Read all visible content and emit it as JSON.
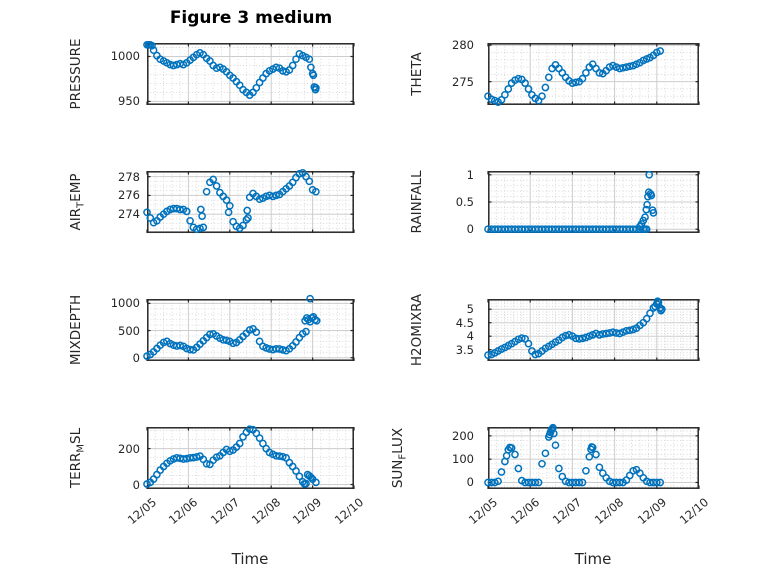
{
  "colors": {
    "marker": "#0072BD",
    "axis": "#262626",
    "grid_major": "#cdcdcd",
    "grid_minor": "#d4d4d4",
    "text": "#262626",
    "title": "#000000"
  },
  "chart_data": {
    "type": "scatter",
    "title": "Figure 3 medium",
    "xlabel": "Time",
    "xlim": [
      0,
      5
    ],
    "x_tick_positions": [
      0,
      1,
      2,
      3,
      4,
      5
    ],
    "x_tick_labels": [
      "12/05",
      "12/06",
      "12/07",
      "12/08",
      "12/09",
      "12/10"
    ],
    "x_minor_step": 0.2,
    "marker_style": "open-circle",
    "t_days": [
      0,
      0.08,
      0.16,
      0.24,
      0.32,
      0.4,
      0.48,
      0.56,
      0.64,
      0.72,
      0.8,
      0.88,
      0.96,
      1.04,
      1.12,
      1.2,
      1.28,
      1.36,
      1.44,
      1.52,
      1.6,
      1.68,
      1.76,
      1.84,
      1.92,
      2,
      2.08,
      2.16,
      2.24,
      2.32,
      2.4,
      2.48,
      2.56,
      2.64,
      2.72,
      2.8,
      2.88,
      2.96,
      3.04,
      3.12,
      3.2,
      3.28,
      3.36,
      3.44,
      3.52,
      3.6,
      3.68,
      3.76,
      3.84,
      3.92,
      4,
      4.08
    ],
    "charts": [
      {
        "name": "PRESSURE",
        "row": 0,
        "col": 0,
        "label_parts": [
          {
            "t": "PRESSURE"
          }
        ],
        "ylim": [
          946,
          1015
        ],
        "yticks": [
          950,
          1000
        ],
        "ytick_labels": [
          "950",
          "1000"
        ],
        "y_minor_step": 10,
        "y": [
          1013,
          1013,
          1007,
          1001,
          997,
          995,
          993,
          991,
          990,
          991,
          992,
          991,
          993,
          996,
          999,
          1002,
          1004,
          1002,
          998,
          995,
          990,
          987,
          988,
          986,
          983,
          979,
          976,
          972,
          968,
          963,
          960,
          957,
          960,
          965,
          971,
          976,
          981,
          984,
          986,
          988,
          987,
          984,
          983,
          985,
          990,
          997,
          1003,
          1001,
          999,
          997,
          981,
          965
        ],
        "extra_points": [
          [
            0.04,
            1013
          ],
          [
            0.12,
            1012
          ],
          [
            3.96,
            988
          ],
          [
            4.02,
            979
          ],
          [
            4.04,
            966
          ],
          [
            4.07,
            963
          ]
        ]
      },
      {
        "name": "THETA",
        "row": 0,
        "col": 1,
        "label_parts": [
          {
            "t": "THETA"
          }
        ],
        "ylim": [
          271.8,
          280.3
        ],
        "yticks": [
          275,
          280
        ],
        "ytick_labels": [
          "275",
          "280"
        ],
        "y_minor_step": 1,
        "y": [
          273,
          272.6,
          272.4,
          272.2,
          272.5,
          273.2,
          274,
          274.8,
          275.2,
          275.4,
          275.3,
          274.8,
          274,
          273.2,
          272.7,
          272.4,
          273,
          274.2,
          275.6,
          276.8,
          277.3,
          276.8,
          276.2,
          275.6,
          275.1,
          274.8,
          274.9,
          275,
          275.4,
          276.2,
          277,
          277.4,
          276.8,
          276.2,
          276.1,
          276.5,
          277,
          277.2,
          277,
          276.8,
          276.9,
          277,
          277.1,
          277.2,
          277.4,
          277.6,
          277.9,
          278.1,
          278.3,
          278.6,
          279,
          279.2
        ],
        "extra_points": []
      },
      {
        "name": "AIR_TEMP",
        "row": 1,
        "col": 0,
        "label_parts": [
          {
            "t": "AIR"
          },
          {
            "s": "T"
          },
          {
            "t": "EMP"
          }
        ],
        "ylim": [
          272,
          278.6
        ],
        "yticks": [
          274,
          276,
          278
        ],
        "ytick_labels": [
          "274",
          "276",
          "278"
        ],
        "y_minor_step": 0.5,
        "y": [
          274.2,
          273.6,
          273.1,
          273.3,
          273.7,
          274,
          274.3,
          274.5,
          274.6,
          274.6,
          274.5,
          274.5,
          274.3,
          273.3,
          272.6,
          272.4,
          272.5,
          272.6,
          276.4,
          277.4,
          277.7,
          277,
          276.3,
          275.9,
          275.5,
          274.9,
          273.2,
          272.7,
          272.5,
          272.8,
          273.4,
          275.8,
          276.2,
          275.9,
          275.6,
          275.7,
          275.9,
          276,
          275.9,
          276,
          276.1,
          276.4,
          276.7,
          277,
          277.4,
          277.9,
          278.3,
          278.4,
          278,
          277.5,
          276.6,
          276.4
        ],
        "extra_points": [
          [
            1.3,
            274.5
          ],
          [
            1.33,
            273.8
          ],
          [
            1.97,
            274.2
          ],
          [
            2.42,
            274.4
          ],
          [
            2.44,
            273.6
          ]
        ]
      },
      {
        "name": "RAINFALL",
        "row": 1,
        "col": 1,
        "label_parts": [
          {
            "t": "RAINFALL"
          }
        ],
        "ylim": [
          -0.07,
          1.07
        ],
        "yticks": [
          0,
          0.5,
          1
        ],
        "ytick_labels": [
          "0",
          "0.5",
          "1"
        ],
        "y_minor_step": 0.1,
        "y": [
          0,
          0,
          0,
          0,
          0,
          0,
          0,
          0,
          0,
          0,
          0,
          0,
          0,
          0,
          0,
          0,
          0,
          0,
          0,
          0,
          0,
          0,
          0,
          0,
          0,
          0,
          0,
          0,
          0,
          0,
          0,
          0,
          0,
          0,
          0,
          0,
          0,
          0,
          0,
          0,
          0,
          0,
          0,
          0,
          0,
          0,
          0,
          null,
          null,
          null,
          null,
          null
        ],
        "extra_points": [
          [
            3.72,
            0
          ],
          [
            3.76,
            0
          ],
          [
            3.6,
            0.05
          ],
          [
            3.64,
            0.1
          ],
          [
            3.68,
            0.16
          ],
          [
            3.72,
            0.22
          ],
          [
            3.75,
            0.36
          ],
          [
            3.77,
            0.45
          ],
          [
            3.79,
            0.6
          ],
          [
            3.81,
            0.68
          ],
          [
            3.82,
            1
          ],
          [
            3.85,
            0.65
          ],
          [
            3.87,
            0.62
          ],
          [
            3.9,
            0.35
          ],
          [
            3.92,
            0.3
          ]
        ]
      },
      {
        "name": "MIXDEPTH",
        "row": 2,
        "col": 0,
        "label_parts": [
          {
            "t": "MIXDEPTH"
          }
        ],
        "ylim": [
          -60,
          1080
        ],
        "yticks": [
          0,
          500,
          1000
        ],
        "ytick_labels": [
          "0",
          "500",
          "1000"
        ],
        "y_minor_step": 100,
        "y": [
          30,
          60,
          110,
          170,
          230,
          280,
          300,
          260,
          230,
          215,
          225,
          210,
          170,
          150,
          145,
          190,
          250,
          310,
          370,
          430,
          440,
          400,
          360,
          330,
          320,
          300,
          265,
          280,
          330,
          390,
          450,
          510,
          530,
          470,
          300,
          210,
          180,
          160,
          150,
          165,
          160,
          145,
          130,
          165,
          220,
          290,
          370,
          440,
          480,
          null,
          null,
          null
        ],
        "extra_points": [
          [
            3.82,
            680
          ],
          [
            3.86,
            730
          ],
          [
            3.9,
            700
          ],
          [
            3.94,
            1085
          ],
          [
            3.94,
            660
          ],
          [
            3.98,
            730
          ],
          [
            4.02,
            750
          ],
          [
            4.06,
            700
          ],
          [
            4.1,
            680
          ]
        ]
      },
      {
        "name": "H2OMIXRA",
        "row": 2,
        "col": 1,
        "label_parts": [
          {
            "t": "H2OMIXRA"
          }
        ],
        "ylim": [
          3.08,
          5.38
        ],
        "yticks": [
          3.5,
          4,
          4.5,
          5
        ],
        "ytick_labels": [
          "3.5",
          "4",
          "4.5",
          "5"
        ],
        "y_minor_step": 0.1,
        "y": [
          3.3,
          3.32,
          3.38,
          3.45,
          3.52,
          3.58,
          3.65,
          3.72,
          3.8,
          3.88,
          3.93,
          3.9,
          3.72,
          3.45,
          3.32,
          3.35,
          3.45,
          3.55,
          3.62,
          3.7,
          3.78,
          3.85,
          3.95,
          4.02,
          4.05,
          4,
          3.92,
          3.9,
          3.92,
          3.95,
          4,
          4.05,
          4.1,
          4.05,
          4.08,
          4.1,
          4.12,
          4.15,
          4.12,
          4.1,
          4.15,
          4.2,
          4.22,
          4.25,
          4.3,
          4.4,
          4.5,
          4.65,
          4.85,
          5.05,
          5.2,
          5.05
        ],
        "extra_points": [
          [
            3.96,
            5.1
          ],
          [
            4.02,
            5.3
          ],
          [
            4.04,
            5.25
          ],
          [
            4.1,
            4.95
          ],
          [
            4.12,
            5
          ]
        ]
      },
      {
        "name": "TERR_MSL",
        "row": 3,
        "col": 0,
        "label_parts": [
          {
            "t": "TERR"
          },
          {
            "s": "M"
          },
          {
            "t": "SL"
          }
        ],
        "ylim": [
          -25,
          320
        ],
        "yticks": [
          0,
          200
        ],
        "ytick_labels": [
          "0",
          "200"
        ],
        "y_minor_step": 50,
        "y": [
          3,
          12,
          30,
          55,
          80,
          100,
          118,
          132,
          142,
          148,
          146,
          142,
          144,
          148,
          150,
          153,
          158,
          140,
          115,
          112,
          135,
          152,
          160,
          178,
          195,
          185,
          192,
          208,
          228,
          265,
          290,
          308,
          305,
          285,
          258,
          228,
          200,
          178,
          168,
          160,
          158,
          155,
          148,
          122,
          100,
          75,
          45,
          15,
          5,
          48,
          30,
          12
        ],
        "extra_points": [
          [
            3.8,
            4
          ],
          [
            3.88,
            55
          ],
          [
            3.96,
            40
          ]
        ]
      },
      {
        "name": "SUN_FLUX",
        "row": 3,
        "col": 1,
        "label_parts": [
          {
            "t": "SUN"
          },
          {
            "s": "F"
          },
          {
            "t": "LUX"
          }
        ],
        "ylim": [
          -28,
          238
        ],
        "yticks": [
          0,
          100,
          200
        ],
        "ytick_labels": [
          "0",
          "100",
          "200"
        ],
        "y_minor_step": 20,
        "y": [
          0,
          0,
          0,
          5,
          45,
          90,
          140,
          148,
          120,
          60,
          8,
          0,
          0,
          0,
          0,
          0,
          80,
          125,
          195,
          230,
          160,
          60,
          25,
          5,
          0,
          0,
          0,
          0,
          0,
          50,
          110,
          150,
          120,
          65,
          40,
          20,
          5,
          0,
          0,
          0,
          0,
          10,
          30,
          50,
          55,
          40,
          20,
          5,
          0,
          0,
          0,
          0
        ],
        "extra_points": [
          [
            0.44,
            115
          ],
          [
            0.52,
            150
          ],
          [
            1.46,
            205
          ],
          [
            1.48,
            215
          ],
          [
            1.5,
            225
          ],
          [
            1.54,
            235
          ],
          [
            1.56,
            210
          ],
          [
            2.44,
            142
          ],
          [
            2.46,
            152
          ]
        ]
      }
    ]
  }
}
